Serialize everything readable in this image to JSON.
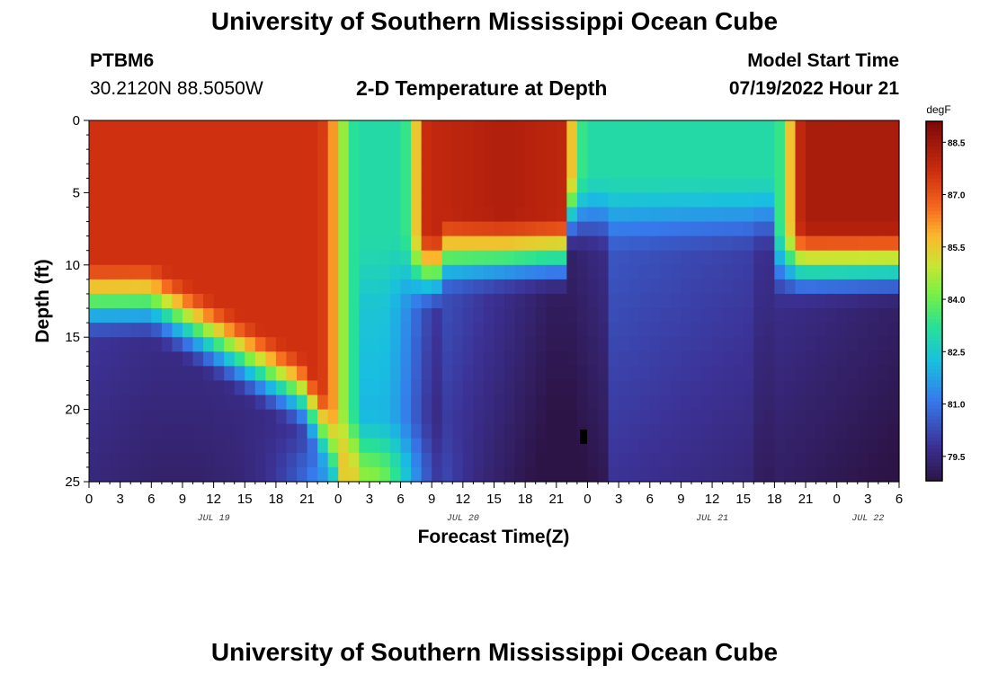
{
  "header": {
    "title": "University of Southern Mississippi Ocean Cube",
    "station": "PTBM6",
    "coords": "30.2120N  88.5050W",
    "subtitle": "2-D Temperature at Depth",
    "model_start_label": "Model Start Time",
    "model_start_value": "07/19/2022 Hour 21"
  },
  "footer": {
    "title": "University of Southern Mississippi Ocean Cube"
  },
  "chart_data": {
    "type": "heatmap",
    "title": "2-D Temperature at Depth",
    "xlabel": "Forecast Time(Z)",
    "ylabel": "Depth (ft)",
    "x_tick_labels": [
      "0",
      "3",
      "6",
      "9",
      "12",
      "15",
      "18",
      "21",
      "0",
      "3",
      "6",
      "9",
      "12",
      "15",
      "18",
      "21",
      "0",
      "3",
      "6",
      "9",
      "12",
      "15",
      "18",
      "21",
      "0",
      "3",
      "6"
    ],
    "x_date_labels": [
      {
        "label": "JUL 19",
        "tick_index": 4
      },
      {
        "label": "JUL 20",
        "tick_index": 12
      },
      {
        "label": "JUL 21",
        "tick_index": 20
      },
      {
        "label": "JUL 22",
        "tick_index": 25
      }
    ],
    "y_ticks": [
      0,
      5,
      10,
      15,
      20,
      25
    ],
    "ylim": [
      0,
      25
    ],
    "x_range_hours": [
      0,
      78
    ],
    "colorbar": {
      "unit": "degF",
      "ticks": [
        "88.5",
        "87.0",
        "85.5",
        "84.0",
        "82.5",
        "81.0",
        "79.5"
      ],
      "range": [
        78.8,
        89.1
      ]
    },
    "grid": false,
    "values_note_degF": {
      "surface_jul19_0_to_21": 87.6,
      "surface_jul20_12_to_21": 88.2,
      "surface_jul21_0_to_18": 83.0,
      "surface_jul22_0_to_6": 88.3,
      "deep_minimum_jul20_21": 79.0
    }
  }
}
